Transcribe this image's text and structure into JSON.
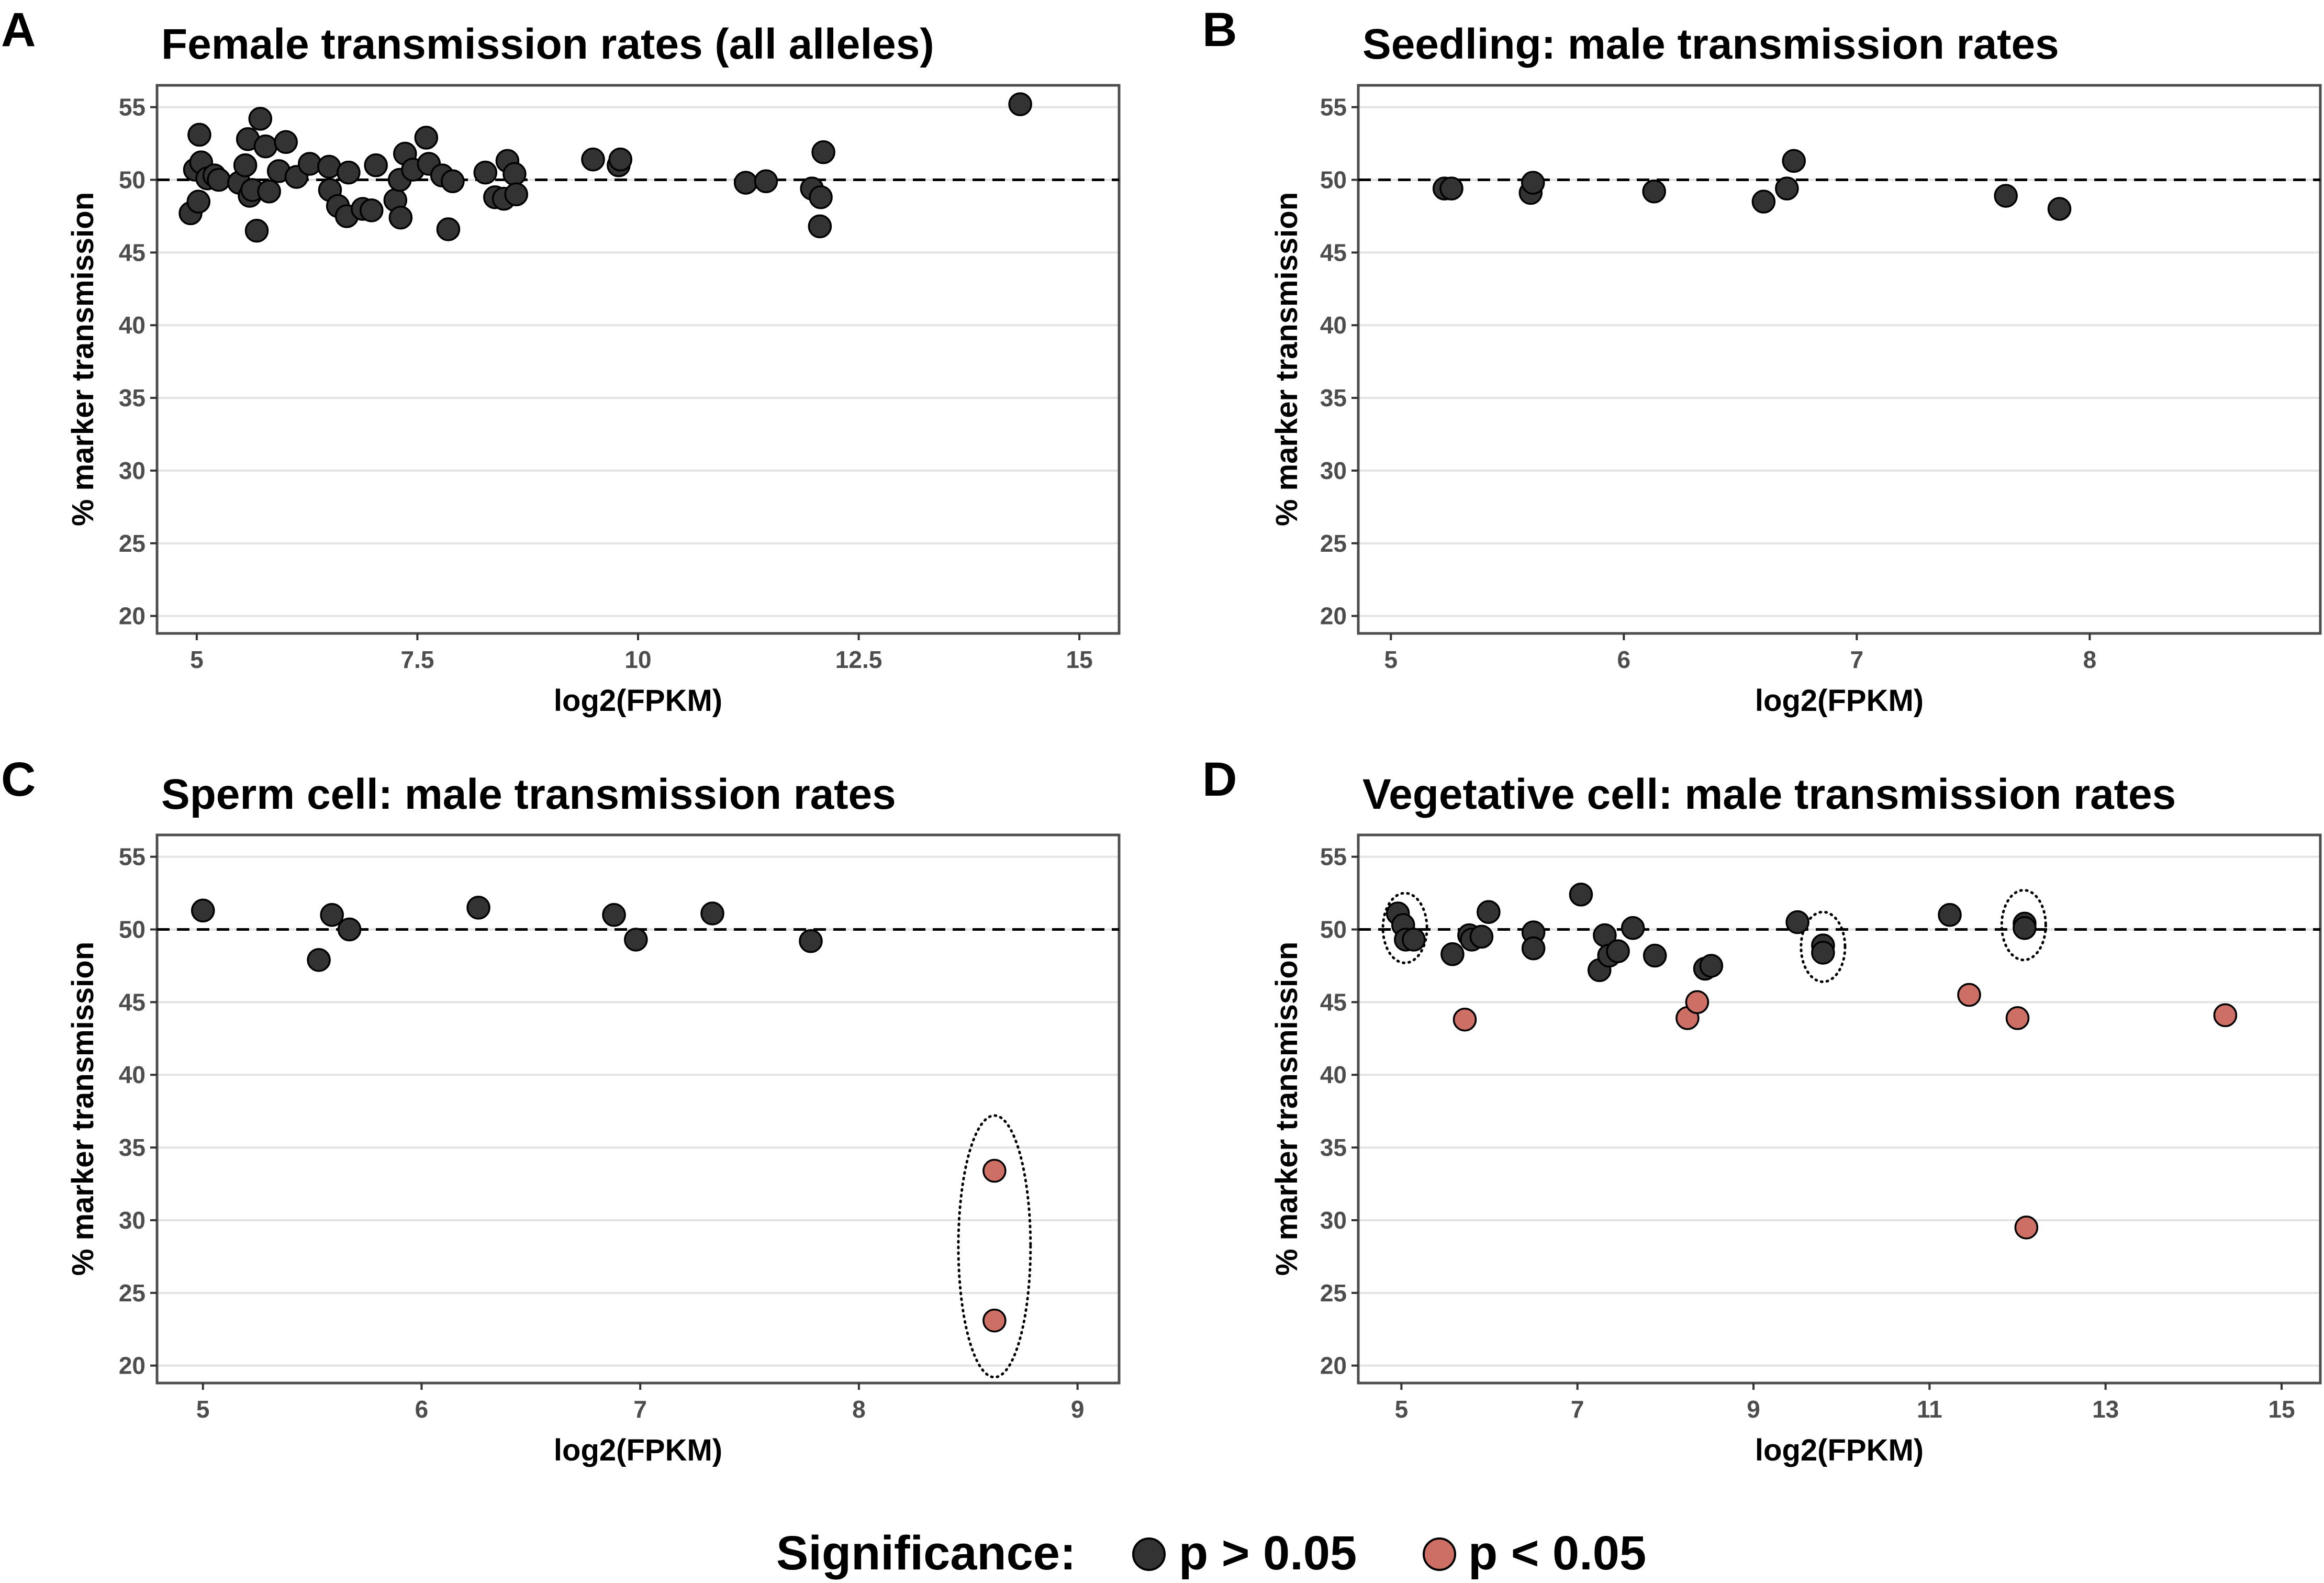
{
  "colors": {
    "not_significant": "#333333",
    "significant": "#cd6f65",
    "point_stroke": "#000000",
    "gridline": "#e3e3e3",
    "panel_border": "#4d4d4d",
    "reference_line": "#000000"
  },
  "legend": {
    "title": "Significance:",
    "items": [
      {
        "label": "p > 0.05",
        "color": "#333333"
      },
      {
        "label": "p < 0.05",
        "color": "#cd6f65"
      }
    ]
  },
  "chart_data": [
    {
      "panel": "A",
      "type": "scatter",
      "title": "Female transmission rates (all alleles)",
      "xlabel": "log2(FPKM)",
      "ylabel": "% marker transmission",
      "xlim": [
        4.55,
        15.45
      ],
      "ylim": [
        18.8,
        56.5
      ],
      "xticks": [
        5,
        7.5,
        10,
        12.5,
        15
      ],
      "xtick_labels": [
        "5",
        "7.5",
        "10",
        "12.5",
        "15"
      ],
      "yticks": [
        20,
        25,
        30,
        35,
        40,
        45,
        50,
        55
      ],
      "ytick_labels": [
        "20",
        "25",
        "30",
        "35",
        "40",
        "45",
        "50",
        "55"
      ],
      "reference_y": 50,
      "grid": "horizontal",
      "highlights": [],
      "points": [
        {
          "x": 4.93,
          "y": 47.7,
          "sig": false
        },
        {
          "x": 4.98,
          "y": 50.7,
          "sig": false
        },
        {
          "x": 5.03,
          "y": 53.1,
          "sig": false
        },
        {
          "x": 5.05,
          "y": 51.2,
          "sig": false
        },
        {
          "x": 5.02,
          "y": 48.5,
          "sig": false
        },
        {
          "x": 5.12,
          "y": 50.1,
          "sig": false
        },
        {
          "x": 5.2,
          "y": 50.3,
          "sig": false
        },
        {
          "x": 5.25,
          "y": 50.0,
          "sig": false
        },
        {
          "x": 5.48,
          "y": 49.8,
          "sig": false
        },
        {
          "x": 5.55,
          "y": 51.0,
          "sig": false
        },
        {
          "x": 5.58,
          "y": 52.8,
          "sig": false
        },
        {
          "x": 5.6,
          "y": 48.9,
          "sig": false
        },
        {
          "x": 5.63,
          "y": 49.3,
          "sig": false
        },
        {
          "x": 5.68,
          "y": 46.5,
          "sig": false
        },
        {
          "x": 5.72,
          "y": 54.2,
          "sig": false
        },
        {
          "x": 5.78,
          "y": 52.3,
          "sig": false
        },
        {
          "x": 5.82,
          "y": 49.2,
          "sig": false
        },
        {
          "x": 5.93,
          "y": 50.6,
          "sig": false
        },
        {
          "x": 6.01,
          "y": 52.6,
          "sig": false
        },
        {
          "x": 6.13,
          "y": 50.2,
          "sig": false
        },
        {
          "x": 6.28,
          "y": 51.1,
          "sig": false
        },
        {
          "x": 6.5,
          "y": 50.9,
          "sig": false
        },
        {
          "x": 6.51,
          "y": 49.3,
          "sig": false
        },
        {
          "x": 6.6,
          "y": 48.2,
          "sig": false
        },
        {
          "x": 6.7,
          "y": 47.5,
          "sig": false
        },
        {
          "x": 6.72,
          "y": 50.5,
          "sig": false
        },
        {
          "x": 6.88,
          "y": 48.0,
          "sig": false
        },
        {
          "x": 6.98,
          "y": 47.9,
          "sig": false
        },
        {
          "x": 7.03,
          "y": 51.0,
          "sig": false
        },
        {
          "x": 7.25,
          "y": 48.6,
          "sig": false
        },
        {
          "x": 7.3,
          "y": 50.0,
          "sig": false
        },
        {
          "x": 7.31,
          "y": 47.4,
          "sig": false
        },
        {
          "x": 7.36,
          "y": 51.8,
          "sig": false
        },
        {
          "x": 7.45,
          "y": 50.7,
          "sig": false
        },
        {
          "x": 7.6,
          "y": 52.9,
          "sig": false
        },
        {
          "x": 7.63,
          "y": 51.1,
          "sig": false
        },
        {
          "x": 7.78,
          "y": 50.3,
          "sig": false
        },
        {
          "x": 7.85,
          "y": 46.6,
          "sig": false
        },
        {
          "x": 7.9,
          "y": 49.9,
          "sig": false
        },
        {
          "x": 8.27,
          "y": 50.5,
          "sig": false
        },
        {
          "x": 8.38,
          "y": 48.8,
          "sig": false
        },
        {
          "x": 8.48,
          "y": 48.7,
          "sig": false
        },
        {
          "x": 8.52,
          "y": 51.3,
          "sig": false
        },
        {
          "x": 8.6,
          "y": 50.4,
          "sig": false
        },
        {
          "x": 8.62,
          "y": 49.0,
          "sig": false
        },
        {
          "x": 9.49,
          "y": 51.4,
          "sig": false
        },
        {
          "x": 9.78,
          "y": 51.0,
          "sig": false
        },
        {
          "x": 9.8,
          "y": 51.4,
          "sig": false
        },
        {
          "x": 11.22,
          "y": 49.8,
          "sig": false
        },
        {
          "x": 11.45,
          "y": 49.9,
          "sig": false
        },
        {
          "x": 11.97,
          "y": 49.4,
          "sig": false
        },
        {
          "x": 12.06,
          "y": 46.8,
          "sig": false
        },
        {
          "x": 12.07,
          "y": 48.8,
          "sig": false
        },
        {
          "x": 12.1,
          "y": 51.9,
          "sig": false
        },
        {
          "x": 14.33,
          "y": 55.2,
          "sig": false
        }
      ]
    },
    {
      "panel": "B",
      "type": "scatter",
      "title": "Seedling: male transmission rates",
      "xlabel": "log2(FPKM)",
      "ylabel": "% marker transmission",
      "xlim": [
        4.86,
        8.99
      ],
      "ylim": [
        18.8,
        56.5
      ],
      "xticks": [
        5,
        6,
        7,
        8
      ],
      "xtick_labels": [
        "5",
        "6",
        "7",
        "8"
      ],
      "yticks": [
        20,
        25,
        30,
        35,
        40,
        45,
        50,
        55
      ],
      "ytick_labels": [
        "20",
        "25",
        "30",
        "35",
        "40",
        "45",
        "50",
        "55"
      ],
      "reference_y": 50,
      "grid": "horizontal",
      "highlights": [],
      "points": [
        {
          "x": 5.23,
          "y": 49.4,
          "sig": false
        },
        {
          "x": 5.26,
          "y": 49.4,
          "sig": false
        },
        {
          "x": 5.6,
          "y": 49.1,
          "sig": false
        },
        {
          "x": 5.61,
          "y": 49.8,
          "sig": false
        },
        {
          "x": 6.13,
          "y": 49.2,
          "sig": false
        },
        {
          "x": 6.6,
          "y": 48.5,
          "sig": false
        },
        {
          "x": 6.7,
          "y": 49.4,
          "sig": false
        },
        {
          "x": 6.73,
          "y": 51.3,
          "sig": false
        },
        {
          "x": 7.64,
          "y": 48.9,
          "sig": false
        },
        {
          "x": 7.87,
          "y": 48.0,
          "sig": false
        }
      ]
    },
    {
      "panel": "C",
      "type": "scatter",
      "title": "Sperm cell: male transmission rates",
      "xlabel": "log2(FPKM)",
      "ylabel": "% marker transmission",
      "xlim": [
        4.79,
        9.19
      ],
      "ylim": [
        18.8,
        56.5
      ],
      "xticks": [
        5,
        6,
        7,
        8,
        9
      ],
      "xtick_labels": [
        "5",
        "6",
        "7",
        "8",
        "9"
      ],
      "yticks": [
        20,
        25,
        30,
        35,
        40,
        45,
        50,
        55
      ],
      "ytick_labels": [
        "20",
        "25",
        "30",
        "35",
        "40",
        "45",
        "50",
        "55"
      ],
      "reference_y": 50,
      "grid": "horizontal",
      "highlights": [
        {
          "cx": 8.62,
          "cy": 28.2,
          "rx": 0.165,
          "ry": 9.0
        }
      ],
      "points": [
        {
          "x": 5.0,
          "y": 51.3,
          "sig": false
        },
        {
          "x": 5.53,
          "y": 47.9,
          "sig": false
        },
        {
          "x": 5.59,
          "y": 51.0,
          "sig": false
        },
        {
          "x": 5.67,
          "y": 50.0,
          "sig": false
        },
        {
          "x": 6.26,
          "y": 51.5,
          "sig": false
        },
        {
          "x": 6.88,
          "y": 51.0,
          "sig": false
        },
        {
          "x": 6.98,
          "y": 49.3,
          "sig": false
        },
        {
          "x": 7.33,
          "y": 51.1,
          "sig": false
        },
        {
          "x": 7.78,
          "y": 49.2,
          "sig": false
        },
        {
          "x": 8.62,
          "y": 33.4,
          "sig": true
        },
        {
          "x": 8.62,
          "y": 23.1,
          "sig": true
        }
      ]
    },
    {
      "panel": "D",
      "type": "scatter",
      "title": "Vegetative cell: male transmission rates",
      "xlabel": "log2(FPKM)",
      "ylabel": "% marker transmission",
      "xlim": [
        4.51,
        15.44
      ],
      "ylim": [
        18.8,
        56.5
      ],
      "xticks": [
        5,
        7,
        9,
        11,
        13,
        15
      ],
      "xtick_labels": [
        "5",
        "7",
        "9",
        "11",
        "13",
        "15"
      ],
      "yticks": [
        20,
        25,
        30,
        35,
        40,
        45,
        50,
        55
      ],
      "ytick_labels": [
        "20",
        "25",
        "30",
        "35",
        "40",
        "45",
        "50",
        "55"
      ],
      "reference_y": 50,
      "grid": "horizontal",
      "highlights": [
        {
          "cx": 5.04,
          "cy": 50.1,
          "rx": 0.25,
          "ry": 2.4
        },
        {
          "cx": 9.79,
          "cy": 48.8,
          "rx": 0.25,
          "ry": 2.4
        },
        {
          "cx": 12.07,
          "cy": 50.3,
          "rx": 0.25,
          "ry": 2.4
        }
      ],
      "points": [
        {
          "x": 4.96,
          "y": 51.1,
          "sig": false
        },
        {
          "x": 5.02,
          "y": 50.3,
          "sig": false
        },
        {
          "x": 5.05,
          "y": 49.3,
          "sig": false
        },
        {
          "x": 5.14,
          "y": 49.3,
          "sig": false
        },
        {
          "x": 5.58,
          "y": 48.3,
          "sig": false
        },
        {
          "x": 5.77,
          "y": 49.6,
          "sig": false
        },
        {
          "x": 5.8,
          "y": 49.3,
          "sig": false
        },
        {
          "x": 5.91,
          "y": 49.5,
          "sig": false
        },
        {
          "x": 5.99,
          "y": 51.2,
          "sig": false
        },
        {
          "x": 6.5,
          "y": 49.8,
          "sig": false
        },
        {
          "x": 6.5,
          "y": 48.7,
          "sig": false
        },
        {
          "x": 7.04,
          "y": 52.4,
          "sig": false
        },
        {
          "x": 7.25,
          "y": 47.2,
          "sig": false
        },
        {
          "x": 7.31,
          "y": 49.6,
          "sig": false
        },
        {
          "x": 7.36,
          "y": 48.2,
          "sig": false
        },
        {
          "x": 7.46,
          "y": 48.5,
          "sig": false
        },
        {
          "x": 7.63,
          "y": 50.1,
          "sig": false
        },
        {
          "x": 7.88,
          "y": 48.2,
          "sig": false
        },
        {
          "x": 8.45,
          "y": 47.3,
          "sig": false
        },
        {
          "x": 8.52,
          "y": 47.5,
          "sig": false
        },
        {
          "x": 9.5,
          "y": 50.5,
          "sig": false
        },
        {
          "x": 9.79,
          "y": 48.9,
          "sig": false
        },
        {
          "x": 9.79,
          "y": 48.4,
          "sig": false
        },
        {
          "x": 11.23,
          "y": 51.0,
          "sig": false
        },
        {
          "x": 12.08,
          "y": 50.4,
          "sig": false
        },
        {
          "x": 12.08,
          "y": 50.1,
          "sig": false
        },
        {
          "x": 5.72,
          "y": 43.8,
          "sig": true
        },
        {
          "x": 8.25,
          "y": 43.9,
          "sig": true
        },
        {
          "x": 8.36,
          "y": 45.0,
          "sig": true
        },
        {
          "x": 11.45,
          "y": 45.5,
          "sig": true
        },
        {
          "x": 12.0,
          "y": 43.9,
          "sig": true
        },
        {
          "x": 12.1,
          "y": 29.5,
          "sig": true
        },
        {
          "x": 14.36,
          "y": 44.1,
          "sig": true
        }
      ]
    }
  ]
}
